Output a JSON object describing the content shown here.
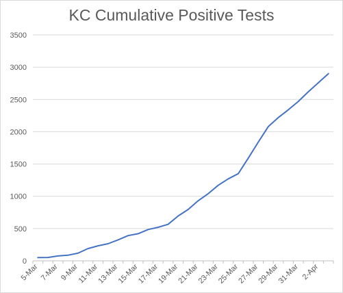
{
  "chart_data": {
    "type": "line",
    "title": "KC Cumulative Positive Tests",
    "xlabel": "",
    "ylabel": "",
    "ylim": [
      0,
      3500
    ],
    "yticks": [
      0,
      500,
      1000,
      1500,
      2000,
      2500,
      3000,
      3500
    ],
    "grid": true,
    "x_tick_labels": [
      "5-Mar",
      "7-Mar",
      "9-Mar",
      "11-Mar",
      "13-Mar",
      "15-Mar",
      "17-Mar",
      "19-Mar",
      "21-Mar",
      "23-Mar",
      "25-Mar",
      "27-Mar",
      "29-Mar",
      "31-Mar",
      "2-Apr"
    ],
    "line_color": "#4472c4",
    "series": [
      {
        "x": [
          "5-Mar",
          "6-Mar",
          "7-Mar",
          "8-Mar",
          "9-Mar",
          "10-Mar",
          "11-Mar",
          "12-Mar",
          "13-Mar",
          "14-Mar",
          "15-Mar",
          "16-Mar",
          "17-Mar",
          "18-Mar",
          "19-Mar",
          "20-Mar",
          "21-Mar",
          "22-Mar",
          "23-Mar",
          "24-Mar",
          "25-Mar",
          "26-Mar",
          "27-Mar",
          "28-Mar",
          "29-Mar",
          "30-Mar",
          "31-Mar",
          "1-Apr",
          "2-Apr",
          "3-Apr"
        ],
        "values": [
          50,
          52,
          75,
          87,
          118,
          190,
          232,
          265,
          325,
          390,
          420,
          485,
          520,
          565,
          695,
          795,
          930,
          1040,
          1170,
          1270,
          1350,
          1590,
          1840,
          2080,
          2220,
          2340,
          2470,
          2620,
          2760,
          2900
        ]
      }
    ]
  }
}
